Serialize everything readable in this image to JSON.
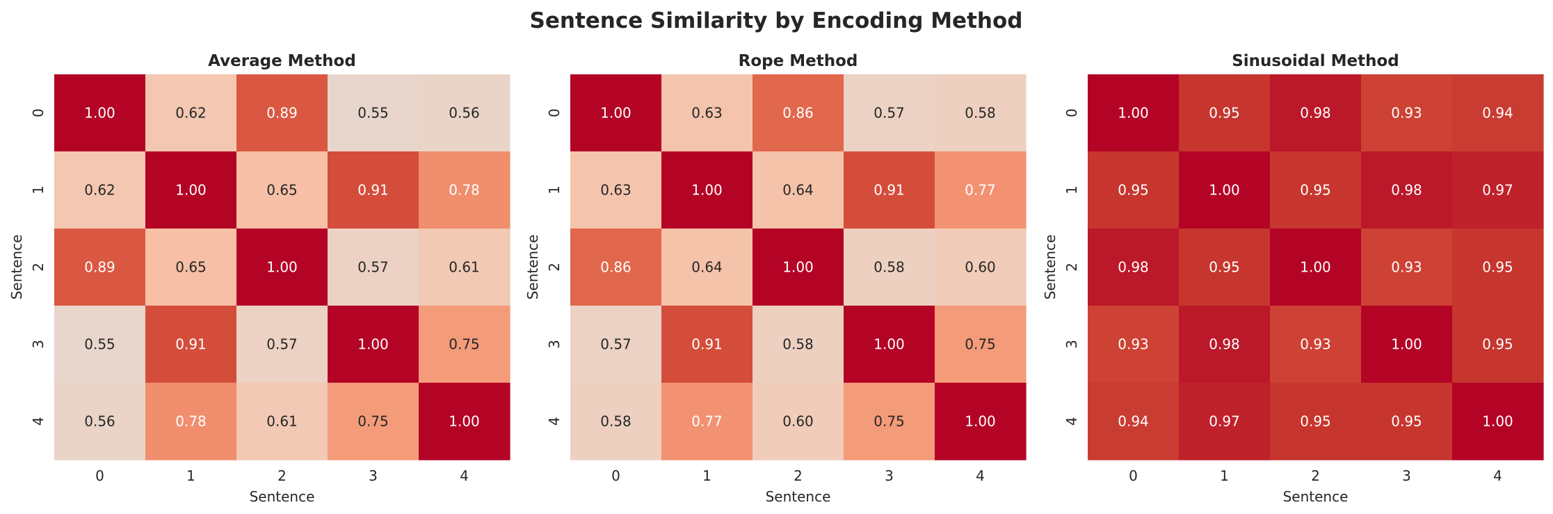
{
  "chart_data": [
    {
      "type": "heatmap",
      "title": "Average Method",
      "xlabel": "Sentence",
      "ylabel": "Sentence",
      "x_ticks": [
        "0",
        "1",
        "2",
        "3",
        "4"
      ],
      "y_ticks": [
        "0",
        "1",
        "2",
        "3",
        "4"
      ],
      "colormap": "coolwarm",
      "vlim": [
        0,
        1
      ],
      "values": [
        [
          1.0,
          0.62,
          0.89,
          0.55,
          0.56
        ],
        [
          0.62,
          1.0,
          0.65,
          0.91,
          0.78
        ],
        [
          0.89,
          0.65,
          1.0,
          0.57,
          0.61
        ],
        [
          0.55,
          0.91,
          0.57,
          1.0,
          0.75
        ],
        [
          0.56,
          0.78,
          0.61,
          0.75,
          1.0
        ]
      ]
    },
    {
      "type": "heatmap",
      "title": "Rope Method",
      "xlabel": "Sentence",
      "ylabel": "Sentence",
      "x_ticks": [
        "0",
        "1",
        "2",
        "3",
        "4"
      ],
      "y_ticks": [
        "0",
        "1",
        "2",
        "3",
        "4"
      ],
      "colormap": "coolwarm",
      "vlim": [
        0,
        1
      ],
      "values": [
        [
          1.0,
          0.63,
          0.86,
          0.57,
          0.58
        ],
        [
          0.63,
          1.0,
          0.64,
          0.91,
          0.77
        ],
        [
          0.86,
          0.64,
          1.0,
          0.58,
          0.6
        ],
        [
          0.57,
          0.91,
          0.58,
          1.0,
          0.75
        ],
        [
          0.58,
          0.77,
          0.6,
          0.75,
          1.0
        ]
      ]
    },
    {
      "type": "heatmap",
      "title": "Sinusoidal Method",
      "xlabel": "Sentence",
      "ylabel": "Sentence",
      "x_ticks": [
        "0",
        "1",
        "2",
        "3",
        "4"
      ],
      "y_ticks": [
        "0",
        "1",
        "2",
        "3",
        "4"
      ],
      "colormap": "coolwarm",
      "vlim": [
        0,
        1
      ],
      "values": [
        [
          1.0,
          0.95,
          0.98,
          0.93,
          0.94
        ],
        [
          0.95,
          1.0,
          0.95,
          0.98,
          0.97
        ],
        [
          0.98,
          0.95,
          1.0,
          0.93,
          0.95
        ],
        [
          0.93,
          0.98,
          0.93,
          1.0,
          0.95
        ],
        [
          0.94,
          0.97,
          0.95,
          0.95,
          1.0
        ]
      ]
    }
  ],
  "figure": {
    "title": "Sentence Similarity by Encoding Method",
    "annotation_colors": {
      "light": "#ffffff",
      "dark": "#262626"
    }
  }
}
